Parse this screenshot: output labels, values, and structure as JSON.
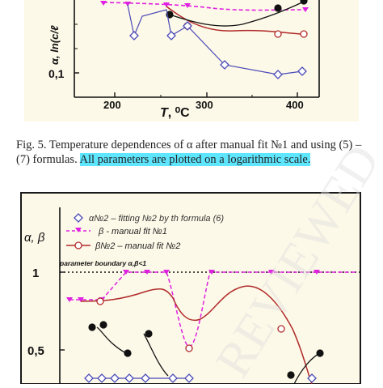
{
  "figure_top": {
    "ylabel": "α, ln(c/ℓ",
    "xlabel_T": "T",
    "xlabel_unit": ", ⁰C",
    "ytick_label": "0,1",
    "xtick_labels": [
      "200",
      "300",
      "400"
    ]
  },
  "caption": {
    "text": "Fig. 5. Temperature dependences of α after manual fit №1 and using (5) – (7) formulas. ",
    "highlight": "All parameters are plotted on a logarithmic scale."
  },
  "figure_bottom": {
    "ylabel": "α, β",
    "legend": [
      "α№2 – fitting №2 by th formula (6)",
      "β - manual fit №1",
      "β№2 – manual fit №2"
    ],
    "boundary_label": "parameter boundary  α,β<1",
    "ytick_labels": [
      "1",
      "0,5"
    ]
  },
  "colors": {
    "magenta": "#e020e0",
    "darkred": "#b02a2a",
    "blue": "#4a4ab8",
    "black": "#111111",
    "highlight": "#5fe6ff",
    "watermark": "#dddddd"
  }
}
